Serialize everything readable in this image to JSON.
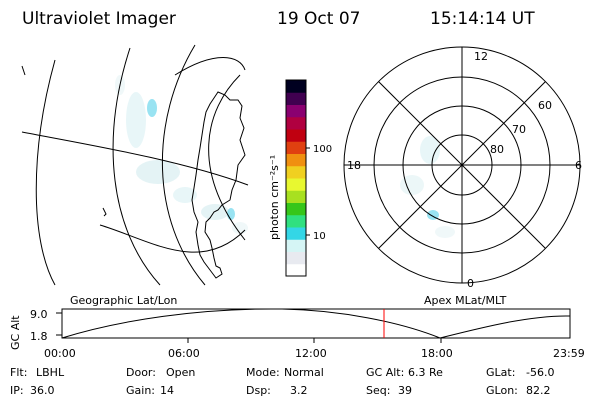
{
  "header": {
    "title": "Ultraviolet Imager",
    "date": "19 Oct 07",
    "time": "15:14:14 UT"
  },
  "colorbar": {
    "unit_label": "photon cm⁻²s⁻¹",
    "tick_labels": [
      "100",
      "10"
    ],
    "colors": [
      "#ffffff",
      "#e8eaf0",
      "#d5f5f5",
      "#33d6e6",
      "#30e080",
      "#36c61a",
      "#a8e020",
      "#e8f830",
      "#f0d020",
      "#f09010",
      "#e04010",
      "#c00010",
      "#b00040",
      "#8a0070",
      "#400050",
      "#000020"
    ]
  },
  "polar": {
    "hour_labels": [
      "12",
      "18",
      "6",
      "0"
    ],
    "lat_labels": [
      "60",
      "70",
      "80"
    ]
  },
  "timeline": {
    "left_title": "Geographic Lat/Lon",
    "right_title": "Apex MLat/MLT",
    "axis_label": "GC Alt",
    "y_labels": [
      "9.0",
      "1.8"
    ],
    "x_labels": [
      "00:00",
      "06:00",
      "12:00",
      "18:00",
      "23:59"
    ],
    "marker_color": "#ff0000"
  },
  "footer": {
    "row1": [
      {
        "label": "Flt:",
        "value": "LBHL"
      },
      {
        "label": "Door:",
        "value": "Open"
      },
      {
        "label": "Mode:",
        "value": "Normal"
      },
      {
        "label": "GC Alt:",
        "value": "6.3 Re"
      },
      {
        "label": "GLat:",
        "value": "-56.0"
      }
    ],
    "row2": [
      {
        "label": "IP:",
        "value": "36.0"
      },
      {
        "label": "Gain:",
        "value": "14"
      },
      {
        "label": "Dsp:",
        "value": "3.2"
      },
      {
        "label": "Seq:",
        "value": "39"
      },
      {
        "label": "GLon:",
        "value": "82.2"
      }
    ]
  }
}
